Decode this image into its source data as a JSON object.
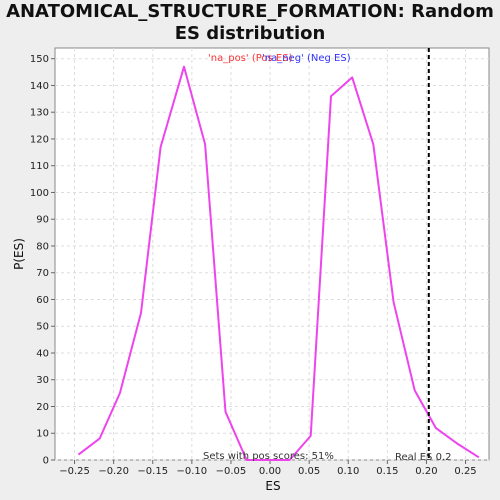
{
  "chart_data": {
    "type": "line",
    "title": "ANATOMICAL_STRUCTURE_FORMATION: Random ES distribution",
    "xlabel": "ES",
    "ylabel": "P(ES)",
    "xlim": [
      -0.275,
      0.28
    ],
    "ylim": [
      0,
      154
    ],
    "x_ticks": [
      -0.25,
      -0.2,
      -0.15,
      -0.1,
      -0.05,
      0.0,
      0.05,
      0.1,
      0.15,
      0.2,
      0.25
    ],
    "x_tick_labels": [
      "−0.25",
      "−0.20",
      "−0.15",
      "−0.10",
      "−0.05",
      "0.00",
      "0.05",
      "0.10",
      "0.15",
      "0.20",
      "0.25"
    ],
    "y_ticks": [
      0,
      10,
      20,
      30,
      40,
      50,
      60,
      70,
      80,
      90,
      100,
      110,
      120,
      130,
      140,
      150
    ],
    "grid": true,
    "legend": {
      "position": "top",
      "items": [
        {
          "label": "'na_pos' (Pos ES)",
          "color": "#ff3333"
        },
        {
          "label": "'na_neg' (Neg ES)",
          "color": "#3333ff"
        }
      ]
    },
    "series": [
      {
        "name": "P(ES)",
        "color": "#ee44ee",
        "points": [
          [
            -0.245,
            2
          ],
          [
            -0.218,
            8
          ],
          [
            -0.192,
            25
          ],
          [
            -0.165,
            55
          ],
          [
            -0.14,
            117
          ],
          [
            -0.11,
            147
          ],
          [
            -0.083,
            118
          ],
          [
            -0.057,
            18
          ],
          [
            -0.03,
            0
          ],
          [
            0.0,
            0
          ],
          [
            0.025,
            0
          ],
          [
            0.052,
            9
          ],
          [
            0.078,
            136
          ],
          [
            0.105,
            143
          ],
          [
            0.132,
            118
          ],
          [
            0.158,
            59
          ],
          [
            0.185,
            26
          ],
          [
            0.212,
            12
          ],
          [
            0.24,
            6
          ],
          [
            0.267,
            1
          ]
        ]
      }
    ],
    "real_es": {
      "x": 0.203,
      "label": "Real ES 0.2"
    },
    "pos_scores_annotation": "Sets with pos scores: 51%"
  }
}
